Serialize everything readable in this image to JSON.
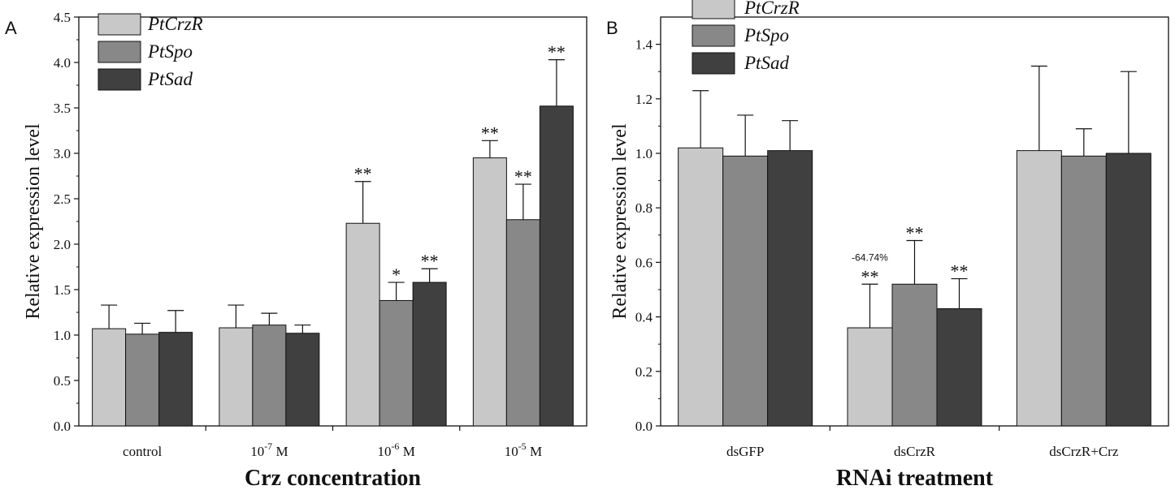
{
  "chart_data": [
    {
      "panel": "A",
      "type": "bar",
      "title": "",
      "xlabel": "Crz concentration",
      "ylabel": "Relative expression level",
      "ylim": [
        0,
        4.5
      ],
      "yticks": [
        "0.0",
        "0.5",
        "1.0",
        "1.5",
        "2.0",
        "2.5",
        "3.0",
        "3.5",
        "4.0",
        "4.5"
      ],
      "categories": [
        {
          "base": "control",
          "exp": "",
          "unit": ""
        },
        {
          "base": "10",
          "exp": "-7",
          "unit": " M"
        },
        {
          "base": "10",
          "exp": "-6",
          "unit": " M"
        },
        {
          "base": "10",
          "exp": "-5",
          "unit": " M"
        }
      ],
      "series": [
        {
          "name": "PtCrzR",
          "color": "#c8c8c8",
          "values": [
            1.07,
            1.08,
            2.23,
            2.95
          ],
          "errors": [
            0.26,
            0.25,
            0.46,
            0.19
          ],
          "sig": [
            "",
            "",
            "**",
            "**"
          ]
        },
        {
          "name": "PtSpo",
          "color": "#888888",
          "values": [
            1.01,
            1.11,
            1.38,
            2.27
          ],
          "errors": [
            0.12,
            0.13,
            0.2,
            0.39
          ],
          "sig": [
            "",
            "",
            "*",
            "**"
          ]
        },
        {
          "name": "PtSad",
          "color": "#404040",
          "values": [
            1.03,
            1.02,
            1.58,
            3.52
          ],
          "errors": [
            0.24,
            0.09,
            0.15,
            0.51
          ],
          "sig": [
            "",
            "",
            "**",
            "**"
          ]
        }
      ],
      "legend": [
        "PtCrzR",
        "PtSpo",
        "PtSad"
      ],
      "legend_position": "top-left"
    },
    {
      "panel": "B",
      "type": "bar",
      "title": "",
      "xlabel": "RNAi treatment",
      "ylabel": "Relative expression level",
      "ylim": [
        0,
        1.5
      ],
      "yticks": [
        "0.0",
        "0.2",
        "0.4",
        "0.6",
        "0.8",
        "1.0",
        "1.2",
        "1.4"
      ],
      "categories": [
        {
          "base": "dsGFP",
          "exp": "",
          "unit": ""
        },
        {
          "base": "dsCrzR",
          "exp": "",
          "unit": ""
        },
        {
          "base": "dsCrzR+Crz",
          "exp": "",
          "unit": ""
        }
      ],
      "series": [
        {
          "name": "PtCrzR",
          "color": "#c8c8c8",
          "values": [
            1.02,
            0.36,
            1.01
          ],
          "errors": [
            0.21,
            0.16,
            0.31
          ],
          "sig": [
            "",
            "**",
            ""
          ]
        },
        {
          "name": "PtSpo",
          "color": "#888888",
          "values": [
            0.99,
            0.52,
            0.99
          ],
          "errors": [
            0.15,
            0.16,
            0.1
          ],
          "sig": [
            "",
            "**",
            ""
          ]
        },
        {
          "name": "PtSad",
          "color": "#404040",
          "values": [
            1.01,
            0.43,
            1.0
          ],
          "errors": [
            0.11,
            0.11,
            0.3
          ],
          "sig": [
            "",
            "**",
            ""
          ]
        }
      ],
      "annotations": [
        {
          "text": "-64.74%",
          "series": 0,
          "category": 1
        }
      ],
      "legend": [
        "PtCrzR",
        "PtSpo",
        "PtSad"
      ],
      "legend_position": "top-left"
    }
  ]
}
